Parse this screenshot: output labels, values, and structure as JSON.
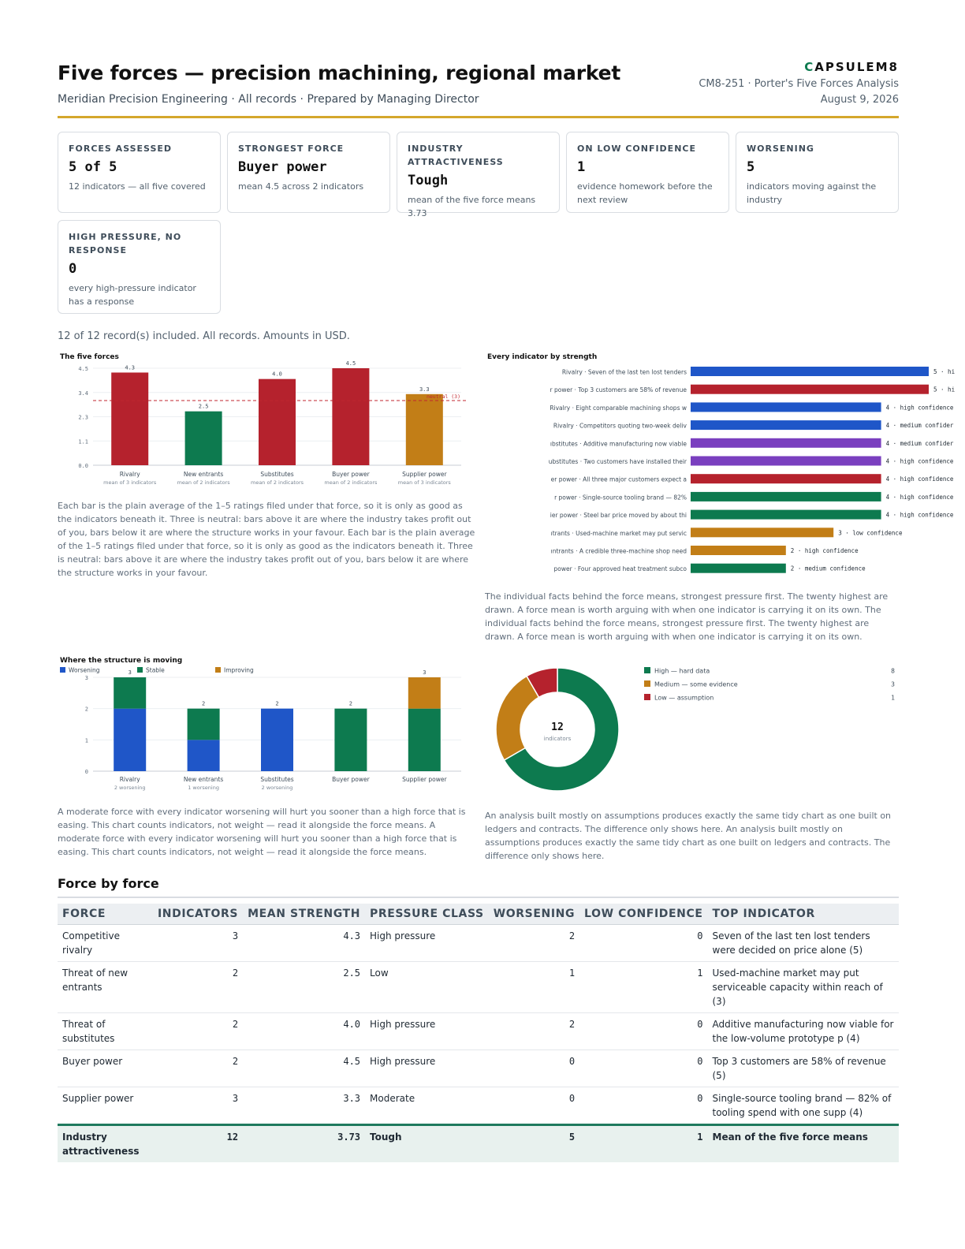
{
  "header": {
    "title": "Five forces — precision machining, regional market",
    "subtitle": "Meridian Precision Engineering · All records · Prepared by Managing Director",
    "brand_mark": "C",
    "brand_rest": "APSULEM8",
    "doc_ref": "CM8-251 · Porter's Five Forces Analysis",
    "date": "August 9, 2026"
  },
  "kpis": [
    {
      "label": "FORCES ASSESSED",
      "value": "5 of 5",
      "note": "12 indicators — all five covered"
    },
    {
      "label": "STRONGEST FORCE",
      "value": "Buyer power",
      "note": "mean 4.5 across 2 indicators"
    },
    {
      "label": "INDUSTRY ATTRACTIVENESS",
      "value": "Tough",
      "note": "mean of the five force means 3.73"
    },
    {
      "label": "ON LOW CONFIDENCE",
      "value": "1",
      "note": "evidence homework before the next review"
    },
    {
      "label": "WORSENING",
      "value": "5",
      "note": "indicators moving against the industry"
    },
    {
      "label": "HIGH PRESSURE, NO RESPONSE",
      "value": "0",
      "note": "every high-pressure indicator has a response"
    }
  ],
  "records_note": "12 of 12 record(s) included. All records. Amounts in USD.",
  "chart_data": [
    {
      "type": "bar",
      "title": "The five forces",
      "categories": [
        "Rivalry",
        "New entrants",
        "Substitutes",
        "Buyer power",
        "Supplier power"
      ],
      "sublabels": [
        "mean of 3 indicators",
        "mean of 2 indicators",
        "mean of 2 indicators",
        "mean of 2 indicators",
        "mean of 3 indicators"
      ],
      "values": [
        4.3,
        2.5,
        4.0,
        4.5,
        3.3
      ],
      "value_labels": [
        "4.3",
        "2.5",
        "4.0",
        "4.5",
        "3.3"
      ],
      "colors": [
        "#b5222d",
        "#0d7a4f",
        "#b5222d",
        "#b5222d",
        "#c27e17"
      ],
      "yticks": [
        "0.0",
        "1.1",
        "2.3",
        "3.4",
        "4.5"
      ],
      "ylim": [
        0,
        4.5
      ],
      "reference": {
        "value": 3,
        "label": "neutral (3)",
        "color": "#c0262f"
      },
      "grid": true
    },
    {
      "type": "bar",
      "orientation": "horizontal",
      "title": "Every indicator by strength",
      "categories": [
        "Rivalry · Seven of the last ten lost tenders",
        "r power · Top 3 customers are 58% of revenue",
        "Rivalry · Eight comparable machining shops w",
        "Rivalry · Competitors quoting two-week deliv",
        "ıbstitutes · Additive manufacturing now viable",
        "ubstitutes · Two customers have installed their",
        "er power · All three major customers expect a",
        "r power · Single-source tooling brand — 82%",
        "ier power · Steel bar price moved by about thi",
        "ıtrants · Used-machine market may put servic",
        "ıntrants · A credible three-machine shop need",
        "power · Four approved heat treatment subco"
      ],
      "values": [
        5,
        5,
        4,
        4,
        4,
        4,
        4,
        4,
        4,
        3,
        2,
        2
      ],
      "value_labels": [
        "5 · hi",
        "5 · hi",
        "4 · high confidence",
        "4 · medium confider",
        "4 · medium confider",
        "4 · high confidence",
        "4 · high confidence",
        "4 · high confidence",
        "4 · high confidence",
        "3 · low confidence",
        "2 · high confidence",
        "2 · medium confidence"
      ],
      "colors": [
        "#1f56c8",
        "#b5222d",
        "#1f56c8",
        "#1f56c8",
        "#7a3fbf",
        "#7a3fbf",
        "#b5222d",
        "#0d7a4f",
        "#0d7a4f",
        "#c27e17",
        "#c27e17",
        "#0d7a4f"
      ],
      "xlim": [
        0,
        5
      ]
    },
    {
      "type": "bar",
      "stacked": true,
      "title": "Where the structure is moving",
      "categories": [
        "Rivalry",
        "New entrants",
        "Substitutes",
        "Buyer power",
        "Supplier power"
      ],
      "sublabels": [
        "2 worsening",
        "1 worsening",
        "2 worsening",
        "",
        ""
      ],
      "series": [
        {
          "name": "Worsening",
          "color": "#1f56c8",
          "values": [
            2,
            1,
            2,
            0,
            0
          ]
        },
        {
          "name": "Stable",
          "color": "#0d7a4f",
          "values": [
            1,
            1,
            0,
            2,
            2
          ]
        },
        {
          "name": "Improving",
          "color": "#c27e17",
          "values": [
            0,
            0,
            0,
            0,
            1
          ]
        }
      ],
      "totals": [
        "3",
        "2",
        "2",
        "2",
        "3"
      ],
      "yticks": [
        "0",
        "1",
        "2",
        "3"
      ],
      "ylim": [
        0,
        3
      ],
      "legend": "top-left"
    },
    {
      "type": "pie",
      "donut": true,
      "center_value": "12",
      "center_label": "indicators",
      "categories": [
        "High — hard data",
        "Medium — some evidence",
        "Low — assumption"
      ],
      "values": [
        8,
        3,
        1
      ],
      "value_labels": [
        "8",
        "3",
        "1"
      ],
      "colors": [
        "#0d7a4f",
        "#c27e17",
        "#b5222d"
      ],
      "legend": "right"
    }
  ],
  "captions": {
    "forces": "Each bar is the plain average of the 1–5 ratings filed under that force, so it is only as good as the indicators beneath it. Three is neutral: bars above it are where the industry takes profit out of you, bars below it are where the structure works in your favour. Each bar is the plain average of the 1–5 ratings filed under that force, so it is only as good as the indicators beneath it. Three is neutral: bars above it are where the industry takes profit out of you, bars below it are where the structure works in your favour.",
    "indicators": "The individual facts behind the force means, strongest pressure first. The twenty highest are drawn. A force mean is worth arguing with when one indicator is carrying it on its own. The individual facts behind the force means, strongest pressure first. The twenty highest are drawn. A force mean is worth arguing with when one indicator is carrying it on its own.",
    "moving": "A moderate force with every indicator worsening will hurt you sooner than a high force that is easing. This chart counts indicators, not weight — read it alongside the force means. A moderate force with every indicator worsening will hurt you sooner than a high force that is easing. This chart counts indicators, not weight — read it alongside the force means.",
    "confidence": "An analysis built mostly on assumptions produces exactly the same tidy chart as one built on ledgers and contracts. The difference only shows here. An analysis built mostly on assumptions produces exactly the same tidy chart as one built on ledgers and contracts. The difference only shows here."
  },
  "table": {
    "section_title": "Force by force",
    "headers": [
      "FORCE",
      "INDICATORS",
      "MEAN STRENGTH",
      "PRESSURE CLASS",
      "WORSENING",
      "LOW CONFIDENCE",
      "TOP INDICATOR"
    ],
    "rows": [
      [
        "Competitive rivalry",
        "3",
        "4.3",
        "High pressure",
        "2",
        "0",
        "Seven of the last ten lost tenders were decided on price alone (5)"
      ],
      [
        "Threat of new entrants",
        "2",
        "2.5",
        "Low",
        "1",
        "1",
        "Used-machine market may put serviceable capacity within reach of (3)"
      ],
      [
        "Threat of substitutes",
        "2",
        "4.0",
        "High pressure",
        "2",
        "0",
        "Additive manufacturing now viable for the low-volume prototype p (4)"
      ],
      [
        "Buyer power",
        "2",
        "4.5",
        "High pressure",
        "0",
        "0",
        "Top 3 customers are 58% of revenue (5)"
      ],
      [
        "Supplier power",
        "3",
        "3.3",
        "Moderate",
        "0",
        "0",
        "Single-source tooling brand — 82% of tooling spend with one supp (4)"
      ]
    ],
    "total": [
      "Industry attractiveness",
      "12",
      "3.73",
      "Tough",
      "5",
      "1",
      "Mean of the five force means"
    ]
  }
}
